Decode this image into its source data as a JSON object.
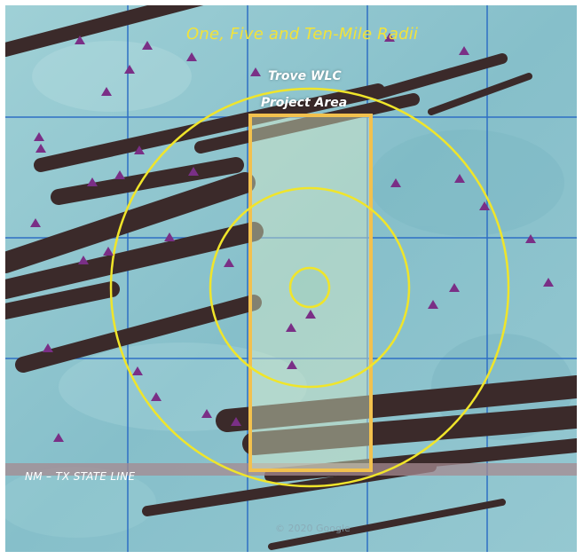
{
  "map": {
    "title": "One, Five and Ten-Mile Radii",
    "project_label_line1": "Trove WLC",
    "project_label_line2": "Project Area",
    "state_line_label": "NM – TX STATE LINE",
    "attribution": "© 2020 Google",
    "radii_miles": [
      1,
      5,
      10
    ],
    "colors": {
      "terrain": "#8fc6cf",
      "grid": "#2e6fc4",
      "radius_ring": "#f0e52a",
      "project_area": "#f2c14e",
      "well_marker": "#7a2f86",
      "pipeline": "#3b2a2a",
      "state_line": "#a58a90"
    },
    "marker_icon": "triangle-icon"
  }
}
